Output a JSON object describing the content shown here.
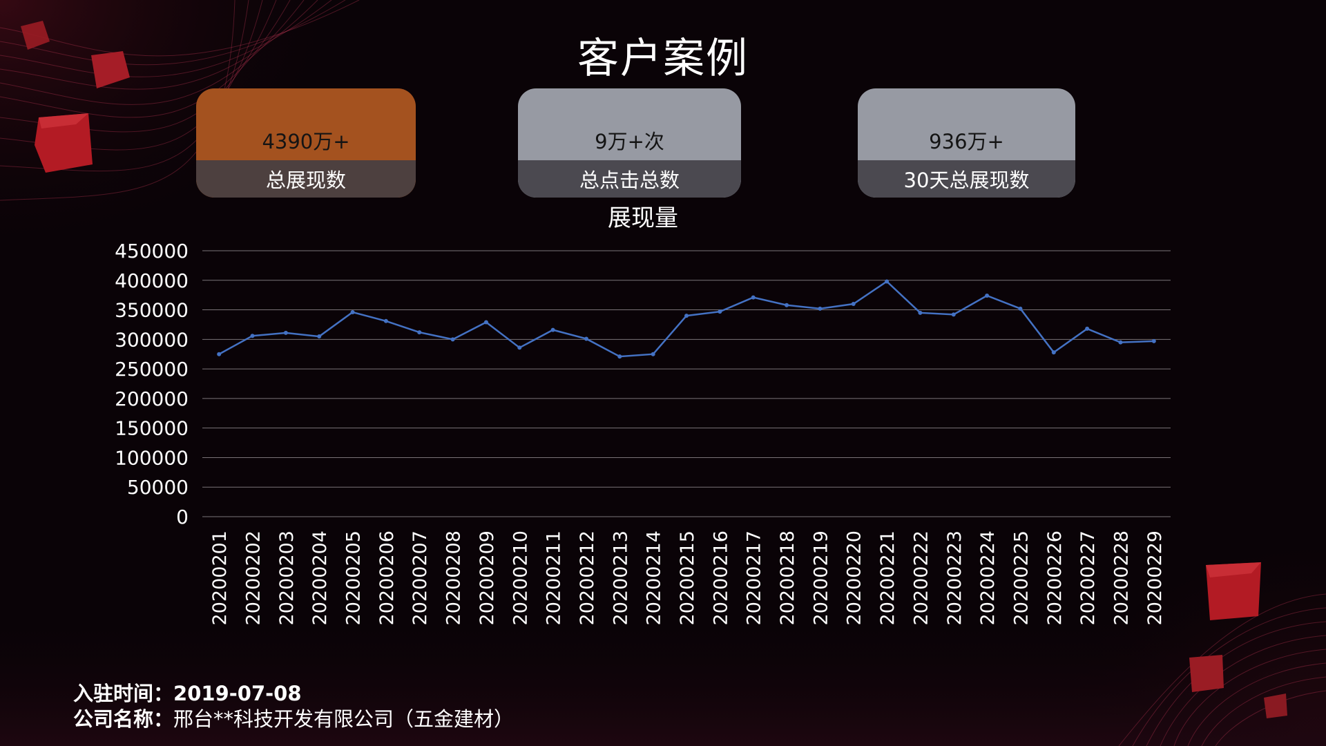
{
  "page": {
    "title": "客户案例"
  },
  "cards": [
    {
      "value": "4390万+",
      "label": "总展现数"
    },
    {
      "value": "9万+次",
      "label": "总点击总数"
    },
    {
      "value": "936万+",
      "label": "30天总展现数"
    }
  ],
  "colors": {
    "orange_card": "#a4521f",
    "grey_card": "#979aa3",
    "line": "#4472c4",
    "grid": "#7a7478",
    "background": "#0a0307",
    "accent_red": "#b31b24"
  },
  "chart_data": {
    "type": "line",
    "title": "展现量",
    "xlabel": "",
    "ylabel": "",
    "ylim": [
      0,
      450000
    ],
    "ytick_step": 50000,
    "yticks": [
      "0",
      "50000",
      "100000",
      "150000",
      "200000",
      "250000",
      "300000",
      "350000",
      "400000",
      "450000"
    ],
    "grid": true,
    "categories": [
      "20200201",
      "20200202",
      "20200203",
      "20200204",
      "20200205",
      "20200206",
      "20200207",
      "20200208",
      "20200209",
      "20200210",
      "20200211",
      "20200212",
      "20200213",
      "20200214",
      "20200215",
      "20200216",
      "20200217",
      "20200218",
      "20200219",
      "20200220",
      "20200221",
      "20200222",
      "20200223",
      "20200224",
      "20200225",
      "20200226",
      "20200227",
      "20200228",
      "20200229"
    ],
    "values": [
      275000,
      306000,
      311000,
      305000,
      346000,
      331000,
      312000,
      300000,
      329000,
      286000,
      316000,
      301000,
      271000,
      275000,
      340000,
      347000,
      371000,
      358000,
      352000,
      360000,
      398000,
      345000,
      342000,
      374000,
      352000,
      278000,
      318000,
      295000,
      297000
    ]
  },
  "footer": {
    "join_label": "入驻时间：",
    "join_value": "2019-07-08",
    "company_label": "公司名称：",
    "company_value": "邢台**科技开发有限公司（五金建材）"
  }
}
